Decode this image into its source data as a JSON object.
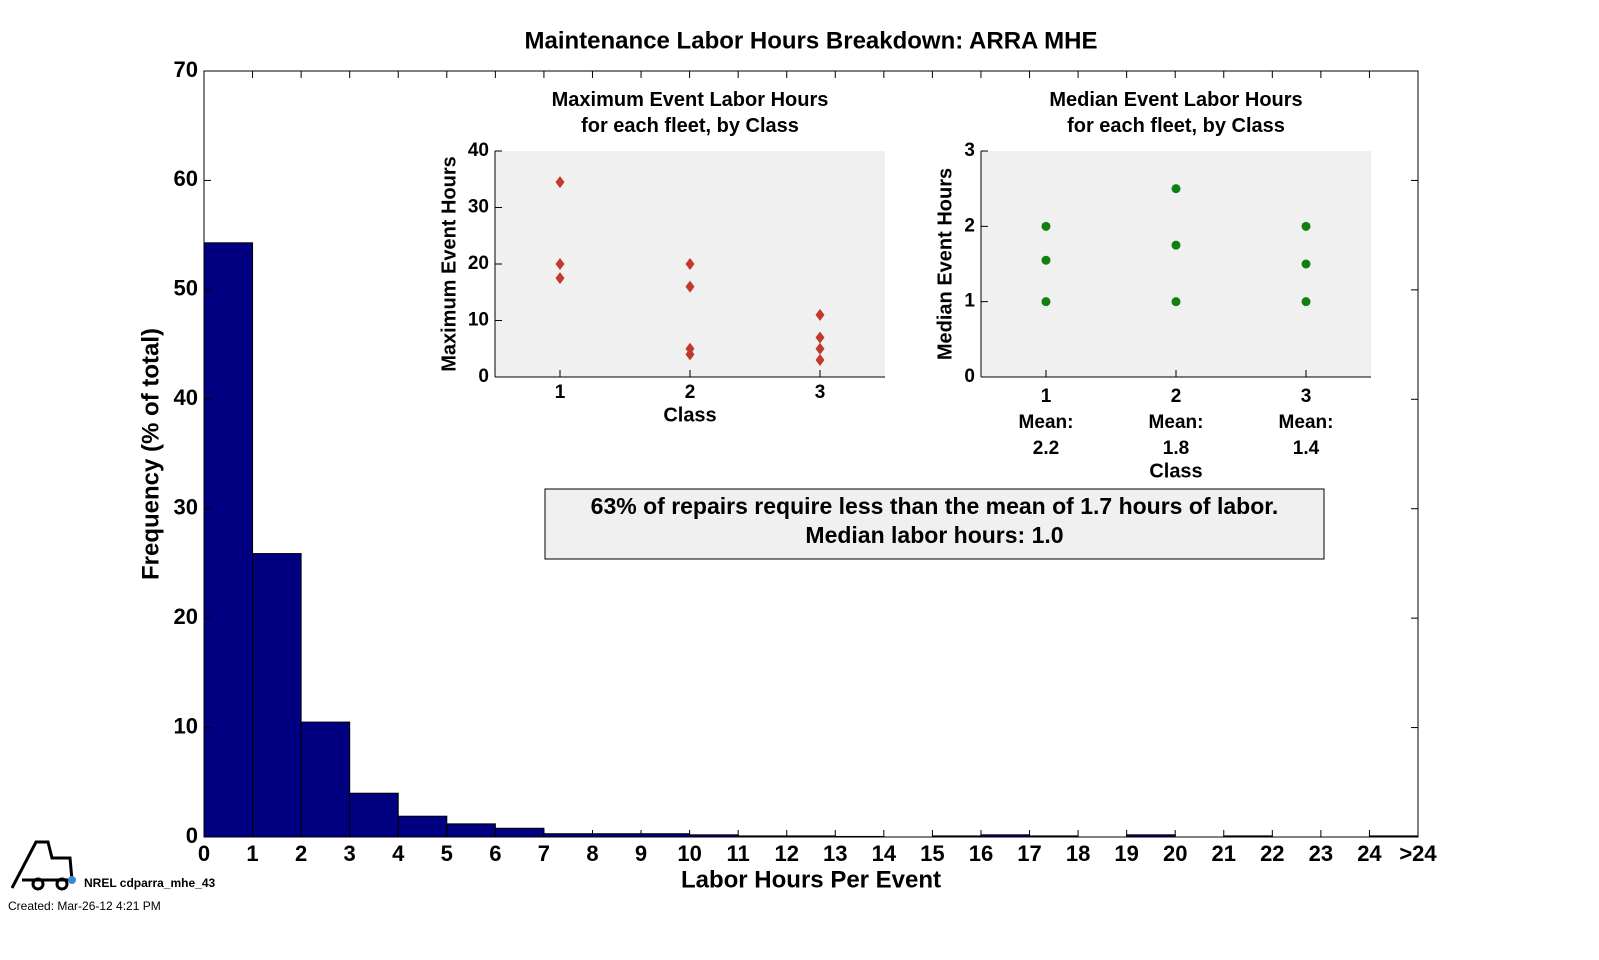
{
  "chart_data": [
    {
      "type": "histogram",
      "title": "Maintenance Labor Hours Breakdown: ARRA MHE",
      "xlabel": "Labor Hours Per Event",
      "ylabel": "Frequency (% of total)",
      "bins": [
        0,
        1,
        2,
        3,
        4,
        5,
        6,
        7,
        8,
        9,
        10,
        11,
        12,
        13,
        14,
        15,
        16,
        17,
        18,
        19,
        20,
        21,
        22,
        23,
        24,
        25
      ],
      "counts": [
        54.3,
        25.9,
        10.5,
        4.0,
        1.9,
        1.2,
        0.8,
        0.3,
        0.3,
        0.3,
        0.2,
        0.1,
        0.1,
        0.05,
        0,
        0.1,
        0.2,
        0.1,
        0,
        0.2,
        0,
        0.1,
        0,
        0,
        0.1
      ],
      "color": "#000080",
      "xlim": [
        0,
        25
      ],
      "xticks": [
        0,
        1,
        2,
        3,
        4,
        5,
        6,
        7,
        8,
        9,
        10,
        11,
        12,
        13,
        14,
        15,
        16,
        17,
        18,
        19,
        20,
        21,
        22,
        23,
        24,
        {
          "value": 25,
          "label": ">24"
        }
      ],
      "ylim": [
        0,
        70
      ],
      "yticks": [
        0,
        10,
        20,
        30,
        40,
        50,
        60,
        70
      ],
      "annotations": [
        "63% of repairs require less than the mean of 1.7 hours of labor.",
        "Median labor hours: 1.0"
      ]
    },
    {
      "type": "scatter",
      "title": "Maximum Event Labor Hours\nfor each fleet, by Class",
      "xlabel": "Class",
      "ylabel": "Maximum Event Hours",
      "marker": "diamond",
      "color": "#c0392b",
      "x": [
        1,
        1,
        1,
        2,
        2,
        2,
        2,
        3,
        3,
        3,
        3
      ],
      "values": [
        34.5,
        20,
        17.5,
        20,
        16,
        5,
        4,
        11,
        7,
        5,
        3
      ],
      "xlim": [
        0.5,
        3.5
      ],
      "xticks": [
        1,
        2,
        3
      ],
      "ylim": [
        0,
        40
      ],
      "yticks": [
        0,
        10,
        20,
        30,
        40
      ]
    },
    {
      "type": "scatter",
      "title": "Median Event Labor Hours\nfor each fleet, by Class",
      "xlabel": "Class",
      "ylabel": "Median Event Hours",
      "marker": "circle",
      "color": "#108010",
      "x": [
        1,
        1,
        1,
        2,
        2,
        2,
        3,
        3,
        3
      ],
      "values": [
        2,
        1.55,
        1,
        2.5,
        1.75,
        1,
        2,
        1.5,
        1
      ],
      "xlim": [
        0.5,
        3.5
      ],
      "xticks": [
        {
          "value": 1,
          "label": "1\nMean:\n2.2"
        },
        {
          "value": 2,
          "label": "2\nMean:\n1.8"
        },
        {
          "value": 3,
          "label": "3\nMean:\n1.4"
        }
      ],
      "ylim": [
        0,
        3
      ],
      "yticks": [
        0,
        1,
        2,
        3
      ]
    }
  ],
  "footer": {
    "label": "NREL cdparra_mhe_43",
    "created": "Created: Mar-26-12  4:21 PM"
  }
}
